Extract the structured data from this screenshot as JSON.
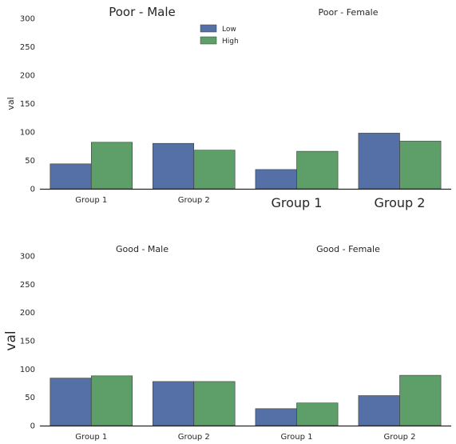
{
  "chart_data": {
    "type": "bar",
    "ylim": [
      0,
      300
    ],
    "yticks": [
      0,
      50,
      100,
      150,
      200,
      250,
      300
    ],
    "grid": false,
    "legend": {
      "entries": [
        "Low",
        "High"
      ],
      "placement": "upper-left (top-left facet)"
    },
    "colors": {
      "Low": "#5470a6",
      "High": "#5e9e69"
    },
    "panels": [
      {
        "title": "Poor - Male",
        "ylabel": "val",
        "categories": [
          "Group 1",
          "Group 2"
        ],
        "series": [
          {
            "name": "Low",
            "values": [
              44,
              80
            ]
          },
          {
            "name": "High",
            "values": [
              82,
              68
            ]
          }
        ]
      },
      {
        "title": "Poor - Female",
        "ylabel": "",
        "categories": [
          "Group 1",
          "Group 2"
        ],
        "series": [
          {
            "name": "Low",
            "values": [
              34,
              98
            ]
          },
          {
            "name": "High",
            "values": [
              66,
              84
            ]
          }
        ]
      },
      {
        "title": "Good - Male",
        "ylabel": "val",
        "categories": [
          "Group 1",
          "Group 2"
        ],
        "series": [
          {
            "name": "Low",
            "values": [
              84,
              78
            ]
          },
          {
            "name": "High",
            "values": [
              88,
              78
            ]
          }
        ]
      },
      {
        "title": "Good - Female",
        "ylabel": "",
        "categories": [
          "Group 1",
          "Group 2"
        ],
        "series": [
          {
            "name": "Low",
            "values": [
              30,
              53
            ]
          },
          {
            "name": "High",
            "values": [
              40,
              89
            ]
          }
        ]
      }
    ]
  }
}
